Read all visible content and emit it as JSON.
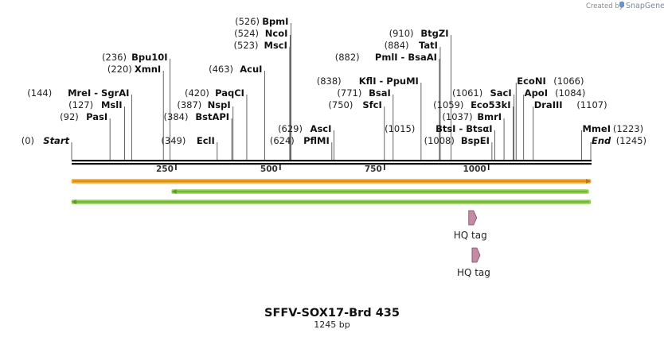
{
  "branding": {
    "created_by": "Created by",
    "app_name": "SnapGene"
  },
  "map": {
    "name": "SFFV-SOX17-Brd 435",
    "length_label": "1245 bp",
    "sequence_length": 1245,
    "ticks": [
      {
        "value": 250,
        "label": "250"
      },
      {
        "value": 500,
        "label": "500"
      },
      {
        "value": 750,
        "label": "750"
      },
      {
        "value": 1000,
        "label": "1000"
      }
    ]
  },
  "sites": [
    {
      "pos": "(0)",
      "name": "Start",
      "at": 0,
      "side": "left",
      "level": 1,
      "italic": true
    },
    {
      "pos": "(92)",
      "name": "PasI",
      "at": 92,
      "side": "left",
      "level": 3
    },
    {
      "pos": "(127)",
      "name": "MslI",
      "at": 127,
      "side": "left",
      "level": 4
    },
    {
      "pos": "(144)",
      "name": "MreI - SgrAI",
      "at": 144,
      "side": "left",
      "level": 5
    },
    {
      "pos": "(220)",
      "name": "XmnI",
      "at": 220,
      "side": "left",
      "level": 7
    },
    {
      "pos": "(236)",
      "name": "Bpu10I",
      "at": 236,
      "side": "left",
      "level": 8
    },
    {
      "pos": "(349)",
      "name": "EclI",
      "at": 349,
      "side": "left",
      "level": 1
    },
    {
      "pos": "(384)",
      "name": "BstAPI",
      "at": 384,
      "side": "left",
      "level": 3
    },
    {
      "pos": "(387)",
      "name": "NspI",
      "at": 387,
      "side": "left",
      "level": 4
    },
    {
      "pos": "(420)",
      "name": "PaqCI",
      "at": 420,
      "side": "left",
      "level": 5
    },
    {
      "pos": "(463)",
      "name": "AcuI",
      "at": 463,
      "side": "left",
      "level": 7
    },
    {
      "pos": "(523)",
      "name": "MscI",
      "at": 523,
      "side": "left",
      "level": 9
    },
    {
      "pos": "(524)",
      "name": "NcoI",
      "at": 524,
      "side": "left",
      "level": 10
    },
    {
      "pos": "(526)",
      "name": "BpmI",
      "at": 526,
      "side": "left",
      "level": 11
    },
    {
      "pos": "(624)",
      "name": "PflMI",
      "at": 624,
      "side": "left",
      "level": 1
    },
    {
      "pos": "(629)",
      "name": "AscI",
      "at": 629,
      "side": "left",
      "level": 2
    },
    {
      "pos": "(750)",
      "name": "SfcI",
      "at": 750,
      "side": "left",
      "level": 4
    },
    {
      "pos": "(771)",
      "name": "BsaI",
      "at": 771,
      "side": "left",
      "level": 5
    },
    {
      "pos": "(838)",
      "name": "KflI - PpuMI",
      "at": 838,
      "side": "left",
      "level": 6
    },
    {
      "pos": "(882)",
      "name": "PmlI - BsaAI",
      "at": 882,
      "side": "left",
      "level": 8
    },
    {
      "pos": "(884)",
      "name": "TatI",
      "at": 884,
      "side": "left",
      "level": 9
    },
    {
      "pos": "(910)",
      "name": "BtgZI",
      "at": 910,
      "side": "left",
      "level": 10
    },
    {
      "pos": "(1008)",
      "name": "BspEI",
      "at": 1008,
      "side": "left",
      "level": 1
    },
    {
      "pos": "(1015)",
      "name": "BtsI - BtsαI",
      "at": 1015,
      "side": "left",
      "level": 2
    },
    {
      "pos": "(1037)",
      "name": "BmrI",
      "at": 1037,
      "side": "left",
      "level": 3
    },
    {
      "pos": "(1059)",
      "name": "Eco53kI",
      "at": 1059,
      "side": "left",
      "level": 4
    },
    {
      "pos": "(1061)",
      "name": "SacI",
      "at": 1061,
      "side": "left",
      "level": 5
    },
    {
      "pos": "(1066)",
      "name": "EcoNI",
      "at": 1066,
      "side": "right",
      "level": 6
    },
    {
      "pos": "(1084)",
      "name": "ApoI",
      "at": 1084,
      "side": "right",
      "level": 5
    },
    {
      "pos": "(1107)",
      "name": "DraIII",
      "at": 1107,
      "side": "right",
      "level": 4
    },
    {
      "pos": "(1223)",
      "name": "MmeI",
      "at": 1223,
      "side": "right",
      "level": 2
    },
    {
      "pos": "(1245)",
      "name": "End",
      "at": 1245,
      "side": "right",
      "level": 1,
      "italic": true
    }
  ],
  "features": [
    {
      "type": "bar",
      "direction": "forward",
      "start": 0,
      "end": 1245,
      "fill": "#f6a623",
      "edge": "#b67a14"
    },
    {
      "type": "bar",
      "direction": "reverse",
      "start": 240,
      "end": 1240,
      "fill": "#8fd14f",
      "edge": "#5a9a2b"
    },
    {
      "type": "bar",
      "direction": "reverse",
      "start": 0,
      "end": 1245,
      "fill": "#8fd14f",
      "edge": "#5a9a2b"
    },
    {
      "type": "tag",
      "label": "HQ tag",
      "at": 960,
      "row": 1,
      "fill": "#c58aa6"
    },
    {
      "type": "tag",
      "label": "HQ tag",
      "at": 968,
      "row": 2,
      "fill": "#c58aa6"
    }
  ],
  "colors": {
    "backbone": "#111111",
    "site_line": "#555555"
  }
}
